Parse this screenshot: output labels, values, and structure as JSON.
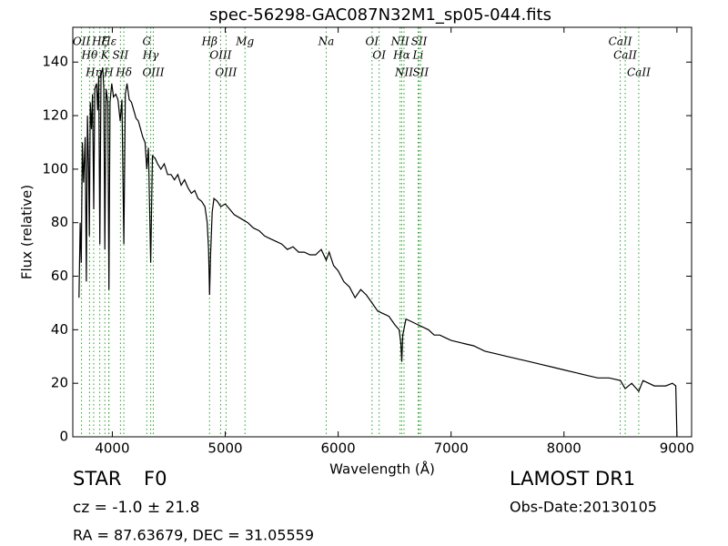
{
  "chart_data": {
    "type": "line",
    "title": "spec-56298-GAC087N32M1_sp05-044.fits",
    "x_label": "Wavelength (Å)",
    "y_label": "Flux (relative)",
    "xlim": [
      3650,
      9130
    ],
    "ylim": [
      0,
      153
    ],
    "xticks": [
      4000,
      5000,
      6000,
      7000,
      8000,
      9000
    ],
    "yticks": [
      0,
      20,
      40,
      60,
      80,
      100,
      120,
      140
    ],
    "color": "#000000",
    "line_color": "#2ca02c",
    "x": [
      3705,
      3715,
      3725,
      3735,
      3745,
      3760,
      3770,
      3780,
      3790,
      3797,
      3805,
      3815,
      3825,
      3835,
      3845,
      3860,
      3870,
      3880,
      3889,
      3900,
      3915,
      3925,
      3934,
      3945,
      3960,
      3970,
      3980,
      3995,
      4010,
      4030,
      4050,
      4070,
      4085,
      4102,
      4115,
      4130,
      4150,
      4170,
      4190,
      4210,
      4230,
      4250,
      4270,
      4290,
      4305,
      4320,
      4340,
      4355,
      4380,
      4400,
      4430,
      4460,
      4490,
      4520,
      4550,
      4580,
      4610,
      4640,
      4670,
      4700,
      4730,
      4760,
      4790,
      4820,
      4840,
      4852,
      4861,
      4870,
      4885,
      4900,
      4930,
      4960,
      5000,
      5040,
      5080,
      5120,
      5160,
      5200,
      5250,
      5300,
      5350,
      5400,
      5450,
      5500,
      5550,
      5600,
      5650,
      5700,
      5750,
      5800,
      5850,
      5894,
      5920,
      5960,
      6000,
      6050,
      6100,
      6150,
      6200,
      6250,
      6300,
      6350,
      6400,
      6450,
      6500,
      6540,
      6555,
      6563,
      6572,
      6600,
      6650,
      6700,
      6750,
      6800,
      6850,
      6900,
      6950,
      7000,
      7100,
      7200,
      7300,
      7400,
      7500,
      7600,
      7700,
      7800,
      7900,
      8000,
      8100,
      8200,
      8300,
      8400,
      8500,
      8542,
      8600,
      8662,
      8700,
      8800,
      8900,
      8960,
      8990,
      9000
    ],
    "values": [
      52,
      80,
      65,
      110,
      95,
      112,
      58,
      120,
      100,
      75,
      125,
      115,
      128,
      85,
      130,
      132,
      122,
      135,
      72,
      135,
      138,
      130,
      70,
      130,
      125,
      55,
      125,
      132,
      127,
      128,
      126,
      118,
      126,
      72,
      128,
      132,
      126,
      125,
      122,
      119,
      118,
      115,
      112,
      110,
      100,
      108,
      65,
      105,
      104,
      102,
      100,
      102,
      98,
      98,
      96,
      98,
      94,
      96,
      93,
      91,
      92,
      89,
      88,
      86,
      80,
      70,
      53,
      68,
      84,
      89,
      88,
      86,
      87,
      85,
      83,
      82,
      81,
      80,
      78,
      77,
      75,
      74,
      73,
      72,
      70,
      71,
      69,
      69,
      68,
      68,
      70,
      66,
      69,
      64,
      62,
      58,
      56,
      52,
      55,
      53,
      50,
      47,
      46,
      45,
      42,
      40,
      35,
      28,
      38,
      44,
      43,
      42,
      41,
      40,
      38,
      38,
      37,
      36,
      35,
      34,
      32,
      31,
      30,
      29,
      28,
      27,
      26,
      25,
      24,
      23,
      22,
      22,
      21,
      18,
      20,
      17,
      21,
      19,
      19,
      20,
      19,
      0
    ],
    "lines": [
      {
        "label": "OII",
        "x": 3727
      },
      {
        "label": "Hθ",
        "x": 3798
      },
      {
        "label": "Hη",
        "x": 3835
      },
      {
        "label": "Hζ",
        "x": 3889
      },
      {
        "label": "K",
        "x": 3934
      },
      {
        "label": "H",
        "x": 3968
      },
      {
        "label": "Hε",
        "x": 3970
      },
      {
        "label": "SII",
        "x": 4072
      },
      {
        "label": "Hδ",
        "x": 4102
      },
      {
        "label": "G",
        "x": 4305
      },
      {
        "label": "Hγ",
        "x": 4340
      },
      {
        "label": "OIII",
        "x": 4363
      },
      {
        "label": "Hβ",
        "x": 4861
      },
      {
        "label": "OIII",
        "x": 4959
      },
      {
        "label": "OIII",
        "x": 5007
      },
      {
        "label": "Mg",
        "x": 5175
      },
      {
        "label": "Na",
        "x": 5894
      },
      {
        "label": "OI",
        "x": 6300
      },
      {
        "label": "OI",
        "x": 6363
      },
      {
        "label": "NII",
        "x": 6548
      },
      {
        "label": "Hα",
        "x": 6563
      },
      {
        "label": "NII",
        "x": 6583
      },
      {
        "label": "Li",
        "x": 6708
      },
      {
        "label": "SII",
        "x": 6717
      },
      {
        "label": "SII",
        "x": 6731
      },
      {
        "label": "CaII",
        "x": 8498
      },
      {
        "label": "CaII",
        "x": 8542
      },
      {
        "label": "CaII",
        "x": 8662
      }
    ],
    "class": "STAR",
    "subclass": "F0",
    "cz": "cz = -1.0  ± 21.8",
    "coords": "RA = 87.63679, DEC = 31.05559",
    "survey": "LAMOST DR1",
    "obs_date": "Obs-Date:20130105"
  }
}
